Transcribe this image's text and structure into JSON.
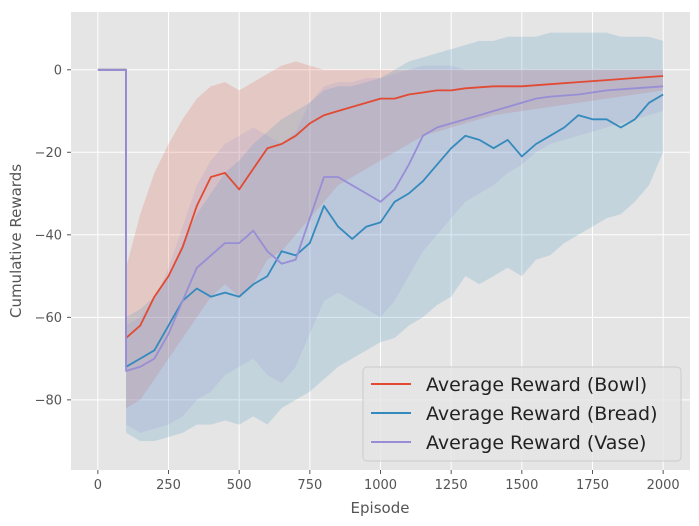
{
  "chart_data": {
    "type": "line",
    "title": "",
    "xlabel": "Episode",
    "ylabel": "Cumulative Rewards",
    "xlim": [
      -95,
      2095
    ],
    "ylim": [
      -97,
      14
    ],
    "xticks": [
      0,
      250,
      500,
      750,
      1000,
      1250,
      1500,
      1750,
      2000
    ],
    "yticks": [
      0,
      -20,
      -40,
      -60,
      -80
    ],
    "grid": true,
    "legend_position": "bottom-right",
    "series": [
      {
        "name": "Average Reward (Bowl)",
        "color": "#e24a33",
        "x": [
          0,
          100,
          100,
          150,
          200,
          250,
          300,
          350,
          400,
          450,
          500,
          550,
          600,
          650,
          700,
          750,
          800,
          850,
          900,
          950,
          1000,
          1050,
          1100,
          1150,
          1200,
          1250,
          1300,
          1400,
          1500,
          1600,
          1700,
          1800,
          1900,
          2000
        ],
        "y": [
          0,
          0,
          -65,
          -62,
          -55,
          -50,
          -43,
          -33,
          -26,
          -25,
          -29,
          -24,
          -19,
          -18,
          -16,
          -13,
          -11,
          -10,
          -9,
          -8,
          -7,
          -7,
          -6,
          -5.5,
          -5,
          -5,
          -4.5,
          -4,
          -4,
          -3.5,
          -3,
          -2.5,
          -2,
          -1.5
        ],
        "upper": [
          0,
          0,
          -48,
          -35,
          -25,
          -18,
          -12,
          -7,
          -4,
          -3,
          -5,
          -3,
          -1,
          1,
          2,
          1,
          0,
          0,
          0,
          0,
          0,
          0,
          0,
          0,
          0,
          0,
          0,
          0,
          0,
          0,
          0,
          0,
          0,
          0
        ],
        "lower": [
          0,
          0,
          -82,
          -80,
          -75,
          -70,
          -65,
          -60,
          -55,
          -52,
          -55,
          -52,
          -46,
          -44,
          -40,
          -36,
          -32,
          -28,
          -26,
          -24,
          -22,
          -20,
          -18,
          -16,
          -15,
          -14,
          -13,
          -11,
          -10,
          -9,
          -8,
          -7,
          -6,
          -5
        ]
      },
      {
        "name": "Average Reward (Bread)",
        "color": "#348abd",
        "x": [
          0,
          100,
          100,
          150,
          200,
          250,
          300,
          350,
          400,
          450,
          500,
          550,
          600,
          650,
          700,
          750,
          800,
          850,
          900,
          950,
          1000,
          1050,
          1100,
          1150,
          1200,
          1250,
          1300,
          1350,
          1400,
          1450,
          1500,
          1550,
          1600,
          1650,
          1700,
          1750,
          1800,
          1850,
          1900,
          1950,
          2000
        ],
        "y": [
          0,
          0,
          -72,
          -70,
          -68,
          -62,
          -56,
          -53,
          -55,
          -54,
          -55,
          -52,
          -50,
          -44,
          -45,
          -42,
          -33,
          -38,
          -41,
          -38,
          -37,
          -32,
          -30,
          -27,
          -23,
          -19,
          -16,
          -17,
          -19,
          -17,
          -21,
          -18,
          -16,
          -14,
          -11,
          -12,
          -12,
          -14,
          -12,
          -8,
          -6
        ],
        "upper": [
          0,
          0,
          -60,
          -58,
          -55,
          -50,
          -42,
          -35,
          -30,
          -25,
          -22,
          -18,
          -15,
          -12,
          -10,
          -8,
          -5,
          -4,
          -4,
          -3,
          -2,
          0,
          2,
          3,
          4,
          5,
          6,
          7,
          7,
          8,
          8,
          8,
          9,
          9,
          9,
          9,
          9,
          8,
          8,
          8,
          7
        ],
        "lower": [
          0,
          0,
          -88,
          -90,
          -90,
          -89,
          -88,
          -86,
          -86,
          -85,
          -86,
          -84,
          -86,
          -82,
          -80,
          -78,
          -75,
          -72,
          -70,
          -68,
          -66,
          -65,
          -62,
          -60,
          -57,
          -55,
          -50,
          -52,
          -50,
          -48,
          -50,
          -46,
          -45,
          -42,
          -40,
          -38,
          -36,
          -35,
          -32,
          -28,
          -20
        ]
      },
      {
        "name": "Average Reward (Vase)",
        "color": "#988ed5",
        "x": [
          0,
          100,
          100,
          150,
          200,
          250,
          300,
          350,
          400,
          450,
          500,
          550,
          600,
          650,
          700,
          750,
          800,
          850,
          900,
          950,
          1000,
          1050,
          1100,
          1150,
          1200,
          1250,
          1300,
          1350,
          1400,
          1450,
          1500,
          1550,
          1600,
          1700,
          1800,
          1900,
          2000
        ],
        "y": [
          0,
          0,
          -73,
          -72,
          -70,
          -64,
          -56,
          -48,
          -45,
          -42,
          -42,
          -39,
          -44,
          -47,
          -46,
          -36,
          -26,
          -26,
          -28,
          -30,
          -32,
          -29,
          -23,
          -16,
          -14,
          -13,
          -12,
          -11,
          -10,
          -9,
          -8,
          -7,
          -6.5,
          -6,
          -5,
          -4.5,
          -4
        ],
        "upper": [
          0,
          0,
          -62,
          -60,
          -56,
          -48,
          -38,
          -28,
          -22,
          -18,
          -16,
          -14,
          -16,
          -18,
          -15,
          -8,
          -4,
          -3,
          -3,
          -2,
          -2,
          -1,
          0,
          1,
          1,
          1,
          0,
          0,
          0,
          0,
          0,
          0,
          0,
          0,
          0,
          0,
          0
        ],
        "lower": [
          0,
          0,
          -86,
          -88,
          -87,
          -86,
          -84,
          -80,
          -78,
          -74,
          -72,
          -70,
          -74,
          -76,
          -72,
          -64,
          -56,
          -54,
          -56,
          -58,
          -60,
          -56,
          -50,
          -44,
          -40,
          -36,
          -32,
          -30,
          -28,
          -25,
          -23,
          -20,
          -18,
          -16,
          -14,
          -12,
          -10
        ]
      }
    ]
  }
}
